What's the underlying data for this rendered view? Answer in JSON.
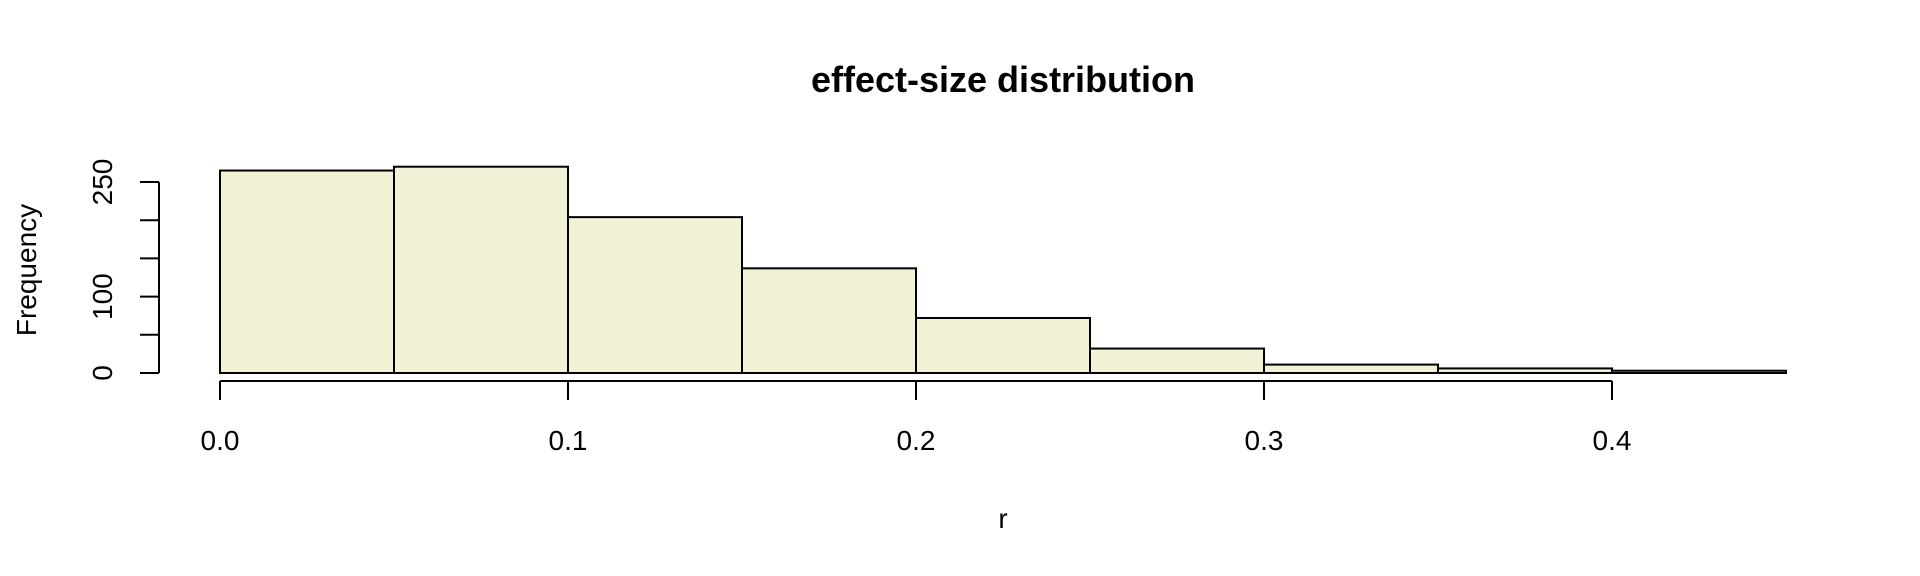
{
  "chart_data": {
    "type": "bar",
    "title": "effect-size distribution",
    "xlabel": "r",
    "ylabel": "Frequency",
    "bar_color": "#f2f2d6",
    "bins": [
      {
        "start": 0.0,
        "end": 0.05,
        "count": 265
      },
      {
        "start": 0.05,
        "end": 0.1,
        "count": 270
      },
      {
        "start": 0.1,
        "end": 0.15,
        "count": 204
      },
      {
        "start": 0.15,
        "end": 0.2,
        "count": 137
      },
      {
        "start": 0.2,
        "end": 0.25,
        "count": 72
      },
      {
        "start": 0.25,
        "end": 0.3,
        "count": 32
      },
      {
        "start": 0.3,
        "end": 0.35,
        "count": 11
      },
      {
        "start": 0.35,
        "end": 0.4,
        "count": 6
      },
      {
        "start": 0.4,
        "end": 0.45,
        "count": 3
      }
    ],
    "xlim": [
      0.0,
      0.45
    ],
    "ylim": [
      0,
      250
    ],
    "x_ticks": [
      0.0,
      0.1,
      0.2,
      0.3,
      0.4
    ],
    "x_tick_labels": [
      "0.0",
      "0.1",
      "0.2",
      "0.3",
      "0.4"
    ],
    "y_ticks": [
      0,
      50,
      100,
      150,
      200,
      250
    ],
    "y_tick_labels": [
      "0",
      "",
      "100",
      "",
      "",
      "250"
    ],
    "grid": false
  }
}
